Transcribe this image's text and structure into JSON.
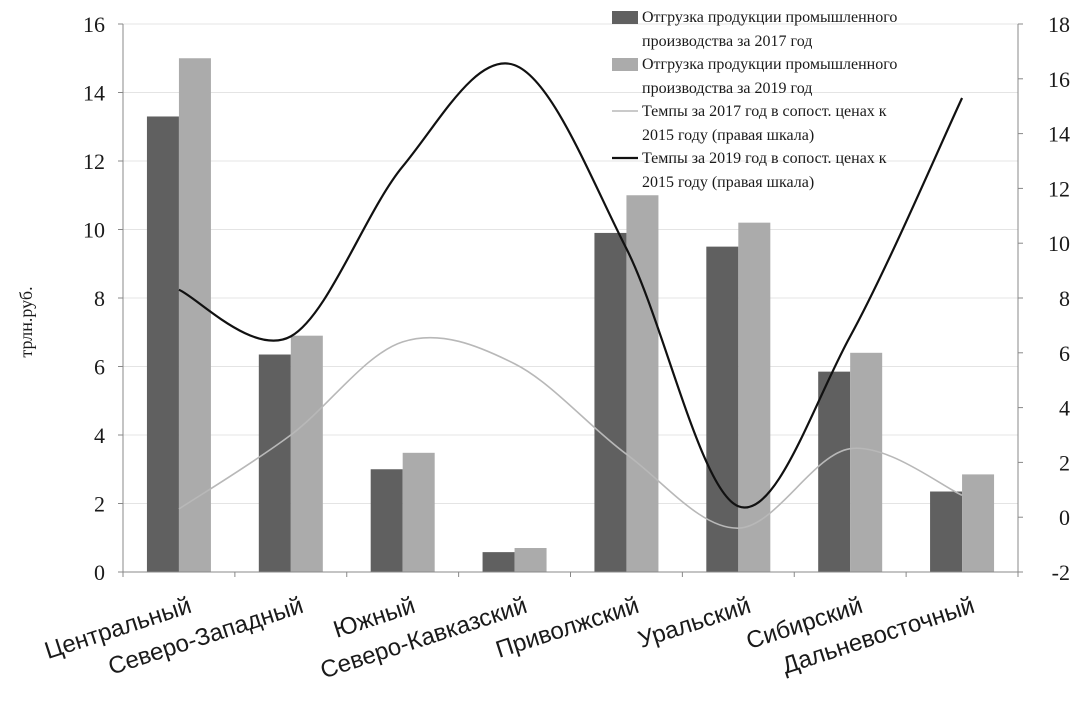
{
  "chart_data": {
    "type": "bar",
    "ylabel": "трлн.руб.",
    "categories": [
      "Центральный",
      "Северо-Западный",
      "Южный",
      "Северо-Кавказский",
      "Приволжский",
      "Уральский",
      "Сибирский",
      "Дальневосточный"
    ],
    "ylim": [
      0,
      16
    ],
    "y2lim": [
      -2,
      18
    ],
    "yticks": [
      "0",
      "2",
      "4",
      "6",
      "8",
      "10",
      "12",
      "14",
      "16"
    ],
    "y2ticks": [
      "-2",
      "0",
      "2",
      "4",
      "6",
      "8",
      "10",
      "12",
      "14",
      "16",
      "18"
    ],
    "grid": true,
    "legend_position": "top-right",
    "series": [
      {
        "name": "Отгрузка продукции промышленного производства за 2017 год",
        "kind": "bar",
        "axis": "left",
        "color": "#606060",
        "values": [
          13.3,
          6.35,
          3.0,
          0.58,
          9.9,
          9.5,
          5.85,
          2.35
        ]
      },
      {
        "name": "Отгрузка продукции промышленного производства за 2019 год",
        "kind": "bar",
        "axis": "left",
        "color": "#ababab",
        "values": [
          15.0,
          6.9,
          3.48,
          0.7,
          11.0,
          10.2,
          6.4,
          2.85
        ]
      },
      {
        "name": "Темпы за 2017 год в сопост. ценах к 2015 году (правая шкала)",
        "kind": "line",
        "axis": "right",
        "color": "#b8b8b8",
        "values": [
          0.3,
          3.0,
          6.4,
          5.6,
          2.3,
          -0.4,
          2.5,
          0.8
        ]
      },
      {
        "name": "Темпы за 2019 год в сопост. ценах к 2015 году (правая шкала)",
        "kind": "line",
        "axis": "right",
        "color": "#111111",
        "values": [
          8.3,
          6.6,
          12.8,
          16.5,
          9.8,
          0.4,
          6.6,
          15.3
        ]
      }
    ],
    "legend_lines": [
      [
        "Отгрузка продукции промышленного",
        "производства за 2017 год"
      ],
      [
        "Отгрузка продукции промышленного",
        "производства за 2019 год"
      ],
      [
        "Темпы за 2017 год в сопост. ценах к",
        "2015 году (правая шкала)"
      ],
      [
        "Темпы за 2019 год в сопост. ценах к",
        "2015 году (правая шкала)"
      ]
    ]
  }
}
